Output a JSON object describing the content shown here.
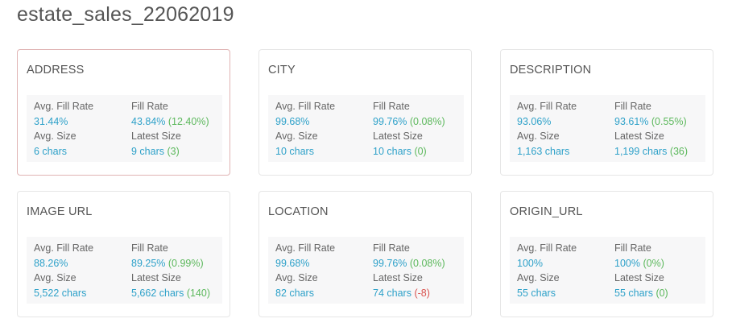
{
  "page": {
    "title": "estate_sales_22062019"
  },
  "labels": {
    "avg_fill_rate": "Avg. Fill Rate",
    "fill_rate": "Fill Rate",
    "avg_size": "Avg. Size",
    "latest_size": "Latest Size"
  },
  "colors": {
    "value_blue": "#2ea1c9",
    "delta_positive": "#5cb85c",
    "delta_negative": "#d9534f",
    "selected_border": "#e0b4b4"
  },
  "fields": [
    {
      "name": "ADDRESS",
      "selected": true,
      "avg_fill_rate": "31.44%",
      "fill_rate": "43.84%",
      "fill_rate_delta": "(12.40%)",
      "avg_size": "6 chars",
      "latest_size": "9 chars",
      "latest_size_delta": "(3)"
    },
    {
      "name": "CITY",
      "selected": false,
      "avg_fill_rate": "99.68%",
      "fill_rate": "99.76%",
      "fill_rate_delta": "(0.08%)",
      "avg_size": "10 chars",
      "latest_size": "10 chars",
      "latest_size_delta": "(0)"
    },
    {
      "name": "DESCRIPTION",
      "selected": false,
      "avg_fill_rate": "93.06%",
      "fill_rate": "93.61%",
      "fill_rate_delta": "(0.55%)",
      "avg_size": "1,163 chars",
      "latest_size": "1,199 chars",
      "latest_size_delta": "(36)"
    },
    {
      "name": "IMAGE URL",
      "selected": false,
      "avg_fill_rate": "88.26%",
      "fill_rate": "89.25%",
      "fill_rate_delta": "(0.99%)",
      "avg_size": "5,522 chars",
      "latest_size": "5,662 chars",
      "latest_size_delta": "(140)"
    },
    {
      "name": "LOCATION",
      "selected": false,
      "avg_fill_rate": "99.68%",
      "fill_rate": "99.76%",
      "fill_rate_delta": "(0.08%)",
      "avg_size": "82 chars",
      "latest_size": "74 chars",
      "latest_size_delta": "(-8)",
      "latest_size_delta_negative": true
    },
    {
      "name": "ORIGIN_URL",
      "selected": false,
      "avg_fill_rate": "100%",
      "fill_rate": "100%",
      "fill_rate_delta": "(0%)",
      "avg_size": "55 chars",
      "latest_size": "55 chars",
      "latest_size_delta": "(0)"
    }
  ]
}
